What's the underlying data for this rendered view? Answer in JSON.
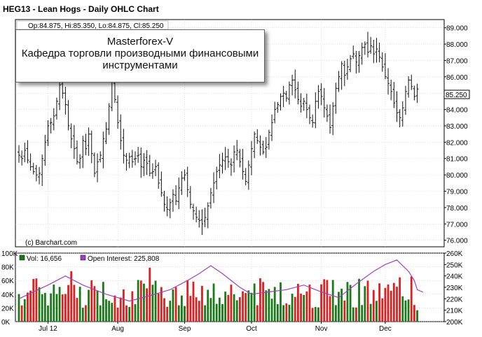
{
  "title": "HEG13 - Lean Hogs - Daily OHLC Chart",
  "ohlc_info": "Op:84.875, Hi:85.350, Lo:84.875, Cl:85.250",
  "watermark": {
    "line1": "Masterforex-V",
    "line2": "Кафедра торговли производными финансовыми",
    "line3": "инструментами"
  },
  "copyright": "(c) Barchart.com",
  "last_price_label": "85.250",
  "colors": {
    "up": "#1a7a1a",
    "down": "#e02020",
    "open_interest": "#a040c0",
    "bar": "#111111"
  },
  "chart_data": [
    {
      "type": "ohlc",
      "y_ticks": [
        "76.000",
        "77.000",
        "78.000",
        "79.000",
        "80.000",
        "81.000",
        "82.000",
        "83.000",
        "84.000",
        "85.000",
        "86.000",
        "87.000",
        "88.000",
        "89.000"
      ],
      "ylim": [
        75.6,
        89.5
      ],
      "x_ticks": [
        "Jul 12",
        "Aug",
        "Sep",
        "Oct",
        "Nov",
        "Dec"
      ],
      "x_tick_index": [
        10,
        34,
        57,
        80,
        104,
        126
      ],
      "grid": true,
      "last": 85.25,
      "closes": [
        81.2,
        81.0,
        81.5,
        80.9,
        80.5,
        80.2,
        80.0,
        80.1,
        81.0,
        82.0,
        83.0,
        83.2,
        83.6,
        84.5,
        85.5,
        85.0,
        84.3,
        83.0,
        82.2,
        81.6,
        80.8,
        81.0,
        82.1,
        81.6,
        82.5,
        81.3,
        80.1,
        80.8,
        81.2,
        82.2,
        82.8,
        84.2,
        85.8,
        84.6,
        83.2,
        82.1,
        81.2,
        80.9,
        81.1,
        80.8,
        81.0,
        81.2,
        80.5,
        80.9,
        80.7,
        80.1,
        80.2,
        80.5,
        79.5,
        78.9,
        78.2,
        77.9,
        78.3,
        78.8,
        78.4,
        79.2,
        79.8,
        80.0,
        79.1,
        78.2,
        77.8,
        77.4,
        77.2,
        77.0,
        77.4,
        78.1,
        78.9,
        79.5,
        80.2,
        80.6,
        80.9,
        81.1,
        80.8,
        80.6,
        81.4,
        81.5,
        80.8,
        80.2,
        79.6,
        80.6,
        81.6,
        82.5,
        82.1,
        81.7,
        81.4,
        81.7,
        82.6,
        83.2,
        84.0,
        84.3,
        84.8,
        85.0,
        84.7,
        85.5,
        85.8,
        85.2,
        84.6,
        84.2,
        84.5,
        84.0,
        83.5,
        83.2,
        84.5,
        85.1,
        84.8,
        84.1,
        83.6,
        82.9,
        84.2,
        85.3,
        86.0,
        86.8,
        86.1,
        86.6,
        87.1,
        87.4,
        86.9,
        87.3,
        87.8,
        88.0,
        87.5,
        87.9,
        87.4,
        87.7,
        87.2,
        86.6,
        86.0,
        85.6,
        85.1,
        84.4,
        83.8,
        83.5,
        84.1,
        85.1,
        85.8,
        85.4,
        84.8,
        85.25
      ],
      "volume_ylim": [
        0,
        100000
      ],
      "volume_ticks": [
        "0K",
        "20K",
        "40K",
        "60K",
        "80K",
        "100K"
      ],
      "open_interest_ylim": [
        200000,
        260000
      ],
      "open_interest_ticks": [
        "200K",
        "210K",
        "220K",
        "230K",
        "240K",
        "250K",
        "260K"
      ],
      "volume_legend": "Vol: 16,656",
      "open_interest_legend": "Open Interest: 225,808",
      "open_interest_series": [
        [
          0,
          220000
        ],
        [
          10,
          232000
        ],
        [
          16,
          240000
        ],
        [
          22,
          232000
        ],
        [
          30,
          224000
        ],
        [
          38,
          218000
        ],
        [
          44,
          222000
        ],
        [
          52,
          228000
        ],
        [
          58,
          236000
        ],
        [
          62,
          242000
        ],
        [
          66,
          249000
        ],
        [
          70,
          242000
        ],
        [
          76,
          230000
        ],
        [
          80,
          224000
        ],
        [
          86,
          226000
        ],
        [
          92,
          228000
        ],
        [
          98,
          232000
        ],
        [
          104,
          226000
        ],
        [
          110,
          221000
        ],
        [
          116,
          233000
        ],
        [
          122,
          244000
        ],
        [
          126,
          250000
        ],
        [
          130,
          254000
        ],
        [
          134,
          244000
        ],
        [
          136,
          236000
        ],
        [
          137,
          228000
        ],
        [
          139,
          225800
        ]
      ]
    }
  ]
}
